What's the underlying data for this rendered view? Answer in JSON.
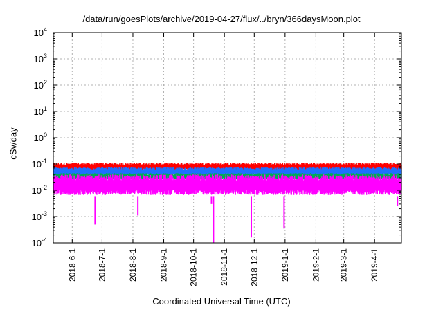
{
  "chart_data": {
    "type": "line",
    "title": "/data/run/goesPlots/archive/2019-04-27/flux/../bryn/366daysMoon.plot",
    "xlabel": "Coordinated Universal Time (UTC)",
    "ylabel": "cSv/day",
    "yscale": "log",
    "ylim": [
      0.0001,
      10000
    ],
    "xlim": [
      "2018-05-13",
      "2019-04-28"
    ],
    "x_ticks": [
      "2018-6-1",
      "2018-7-1",
      "2018-8-1",
      "2018-9-1",
      "2018-10-1",
      "2018-11-1",
      "2018-12-1",
      "2019-1-1",
      "2019-2-1",
      "2019-3-1",
      "2019-4-1"
    ],
    "y_ticks": [
      {
        "value": 0.0001,
        "base": "10",
        "exp": "-4"
      },
      {
        "value": 0.001,
        "base": "10",
        "exp": "-3"
      },
      {
        "value": 0.01,
        "base": "10",
        "exp": "-2"
      },
      {
        "value": 0.1,
        "base": "10",
        "exp": "-1"
      },
      {
        "value": 1,
        "base": "10",
        "exp": "0"
      },
      {
        "value": 10,
        "base": "10",
        "exp": "1"
      },
      {
        "value": 100,
        "base": "10",
        "exp": "2"
      },
      {
        "value": 1000,
        "base": "10",
        "exp": "3"
      },
      {
        "value": 10000,
        "base": "10",
        "exp": "4"
      }
    ],
    "grid": true,
    "series": [
      {
        "color": "#ff0000",
        "band": [
          0.055,
          0.11
        ]
      },
      {
        "color": "#1e6fff",
        "band": [
          0.035,
          0.075
        ]
      },
      {
        "color": "#00aa55",
        "band": [
          0.025,
          0.045
        ]
      },
      {
        "color": "#ff00ff",
        "band": [
          0.006,
          0.04
        ],
        "dips": [
          {
            "date": "2018-06-24",
            "value": 0.0005
          },
          {
            "date": "2018-08-06",
            "value": 0.0011
          },
          {
            "date": "2018-10-19",
            "value": 0.003
          },
          {
            "date": "2018-10-21",
            "value": 0.0001
          },
          {
            "date": "2018-11-28",
            "value": 0.00016
          },
          {
            "date": "2018-12-31",
            "value": 0.00035
          },
          {
            "date": "2019-04-24",
            "value": 0.0025
          }
        ]
      }
    ]
  }
}
